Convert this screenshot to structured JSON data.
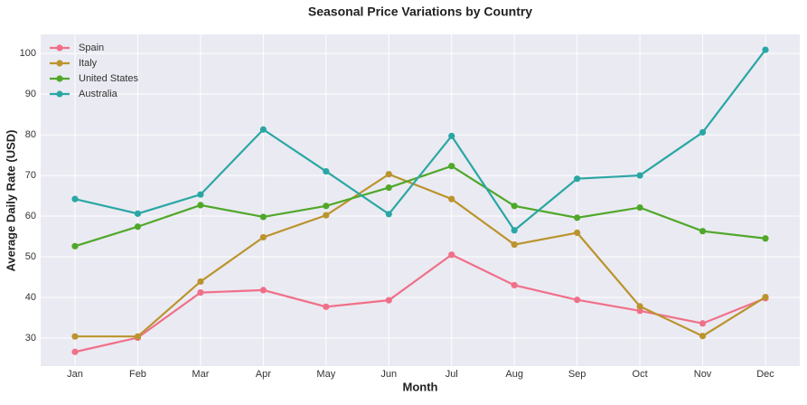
{
  "chart_data": {
    "type": "line",
    "title": "Seasonal Price Variations by Country",
    "x_label": "Month",
    "y_label": "Average Daily Rate (USD)",
    "categories": [
      "Jan",
      "Feb",
      "Mar",
      "Apr",
      "May",
      "Jun",
      "Jul",
      "Aug",
      "Sep",
      "Oct",
      "Nov",
      "Dec"
    ],
    "series": [
      {
        "name": "Spain",
        "color": "#f07089",
        "values": [
          26.6,
          30.1,
          41.2,
          41.8,
          37.7,
          39.3,
          50.5,
          43,
          39.4,
          36.7,
          33.6,
          39.8
        ]
      },
      {
        "name": "Italy",
        "color": "#bb942e",
        "values": [
          30.4,
          30.4,
          43.9,
          54.8,
          60.2,
          70.3,
          64.2,
          53,
          55.9,
          37.8,
          30.5,
          40.1
        ]
      },
      {
        "name": "United States",
        "color": "#4fa829",
        "values": [
          52.6,
          57.4,
          62.7,
          59.8,
          62.5,
          67,
          72.3,
          62.5,
          59.6,
          62.1,
          56.3,
          54.5
        ]
      },
      {
        "name": "Australia",
        "color": "#2aa7a4",
        "values": [
          64.2,
          60.6,
          65.3,
          81.3,
          71,
          60.5,
          79.7,
          56.5,
          69.2,
          70,
          80.6,
          100.9
        ]
      }
    ],
    "ylim": [
      23.1,
      104.7
    ],
    "yticks": [
      30,
      40,
      50,
      60,
      70,
      80,
      90,
      100
    ],
    "grid": true,
    "legend": "upper left"
  }
}
